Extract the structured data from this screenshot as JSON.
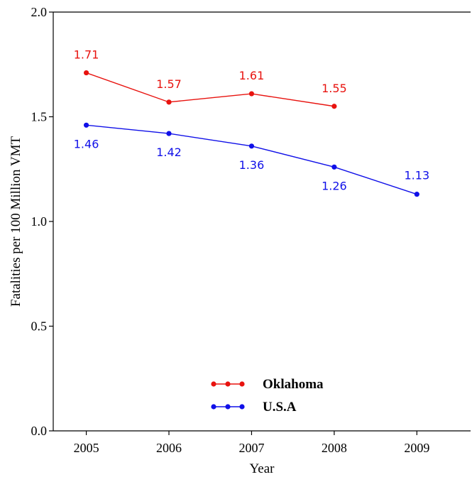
{
  "chart_data": {
    "type": "line",
    "x": [
      2005,
      2006,
      2007,
      2008,
      2009
    ],
    "xlim": [
      2004.6,
      2009.65
    ],
    "ylim": [
      0.0,
      2.0
    ],
    "yticks": [
      "0.0",
      "0.5",
      "1.0",
      "1.5",
      "2.0"
    ],
    "xticks": [
      "2005",
      "2006",
      "2007",
      "2008",
      "2009"
    ],
    "xlabel": "Year",
    "ylabel": "Fatalities per 100 Million VMT",
    "legend_position": "bottom-center",
    "grid": false,
    "series": [
      {
        "name": "Oklahoma",
        "color": "#e8130f",
        "values": [
          1.71,
          1.57,
          1.61,
          1.55,
          null
        ],
        "labels": [
          "1.71",
          "1.57",
          "1.61",
          "1.55",
          ""
        ]
      },
      {
        "name": "U.S.A",
        "color": "#1010e8",
        "values": [
          1.46,
          1.42,
          1.36,
          1.26,
          1.13
        ],
        "labels": [
          "1.46",
          "1.42",
          "1.36",
          "1.26",
          "1.13"
        ]
      }
    ]
  }
}
